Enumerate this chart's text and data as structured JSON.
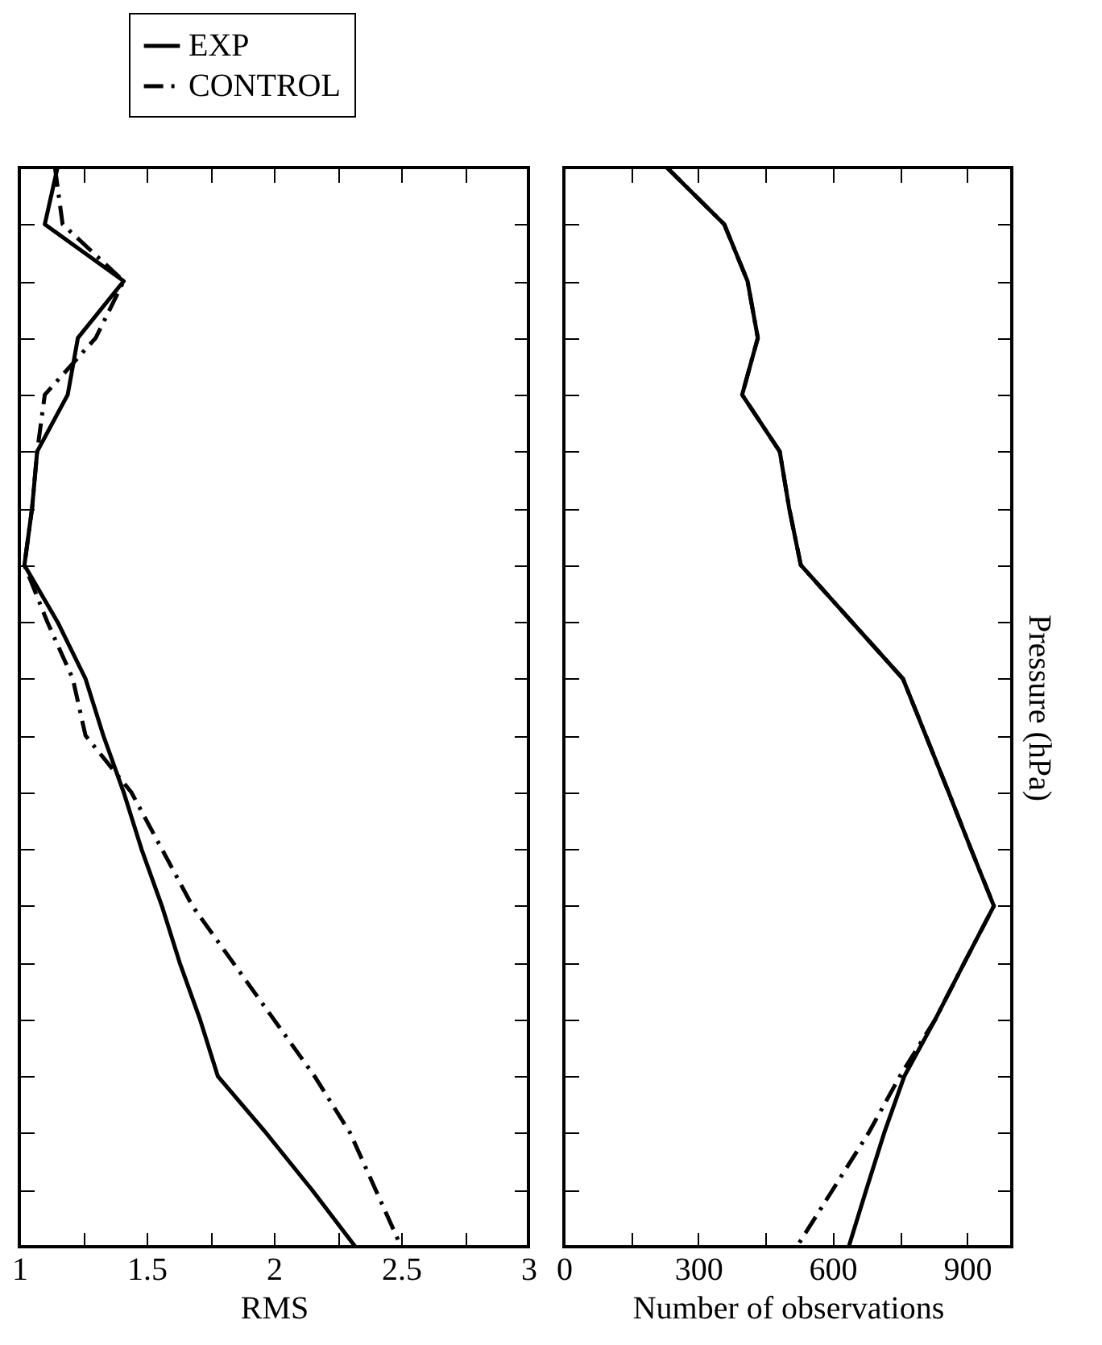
{
  "chart_data": [
    {
      "type": "line",
      "orientation": "horizontal",
      "xlabel": "RMS",
      "xlim": [
        1,
        3
      ],
      "xticks": [
        1,
        {
          "value": 1.25,
          "label": null
        },
        1.5,
        {
          "value": 1.75,
          "label": null
        },
        2,
        {
          "value": 2.25,
          "label": null
        },
        2.5,
        {
          "value": 2.75,
          "label": null
        },
        3
      ],
      "categories": [
        null,
        null,
        null,
        null,
        null,
        null,
        null,
        null,
        null,
        null,
        null,
        null,
        null,
        null,
        null,
        null,
        null,
        null,
        null,
        null
      ],
      "tick_labels": "x",
      "legend": "top left",
      "grid": false,
      "series": [
        {
          "name": "EXP",
          "color": "#000000",
          "line_style": "solid",
          "values": [
            1.15,
            1.1,
            1.41,
            1.23,
            1.19,
            1.07,
            1.05,
            1.02,
            1.15,
            1.26,
            1.33,
            1.41,
            1.48,
            1.56,
            1.63,
            1.71,
            1.78,
            1.97,
            2.15,
            2.32
          ]
        },
        {
          "name": "CONTROL",
          "color": "#000000",
          "line_style": "dashed",
          "values": [
            1.14,
            1.17,
            1.41,
            1.3,
            1.1,
            1.07,
            1.05,
            1.02,
            1.11,
            1.21,
            1.26,
            1.44,
            1.56,
            1.68,
            1.84,
            2.0,
            2.16,
            2.3,
            2.4,
            2.5
          ]
        }
      ]
    },
    {
      "type": "line",
      "orientation": "horizontal",
      "xlabel": "Number of observations",
      "ylabel": "Pressure (hPa)",
      "xlim": [
        0,
        1000
      ],
      "xticks": [
        0,
        {
          "value": 150,
          "label": null
        },
        300,
        {
          "value": 450,
          "label": null
        },
        600,
        {
          "value": 750,
          "label": null
        },
        900
      ],
      "categories": [
        null,
        null,
        null,
        null,
        null,
        null,
        null,
        null,
        null,
        null,
        null,
        null,
        null,
        null,
        null,
        null,
        null,
        null,
        null,
        null
      ],
      "tick_labels": "x",
      "grid": false,
      "series": [
        {
          "color": "#000000",
          "line_style": "solid",
          "values": [
            230,
            358,
            410,
            433,
            398,
            482,
            503,
            529,
            643,
            757,
            808,
            859,
            909,
            960,
            894,
            829,
            760,
            715,
            675,
            636
          ]
        },
        {
          "color": "#000000",
          "line_style": "dashed",
          "values": [
            230,
            358,
            410,
            433,
            398,
            482,
            503,
            529,
            643,
            757,
            808,
            859,
            909,
            960,
            894,
            829,
            750,
            680,
            600,
            520
          ]
        }
      ]
    }
  ]
}
